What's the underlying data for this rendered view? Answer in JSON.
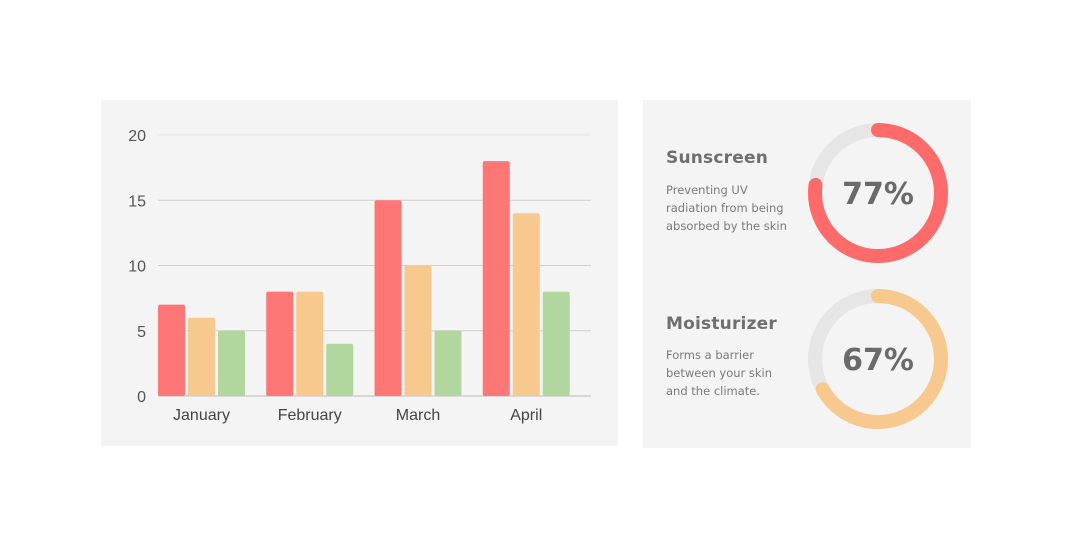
{
  "chart_data": {
    "type": "bar",
    "categories": [
      "January",
      "February",
      "March",
      "April"
    ],
    "series": [
      {
        "values": [
          7,
          8,
          15,
          18
        ],
        "color": "#ff7676"
      },
      {
        "values": [
          6,
          8,
          10,
          14
        ],
        "color": "#f8c98f"
      },
      {
        "values": [
          5,
          4,
          5,
          8
        ],
        "color": "#b1d79e"
      }
    ],
    "ylim": [
      0,
      20
    ],
    "yticks": [
      0,
      5,
      10,
      15,
      20
    ],
    "grid": true,
    "legend": "none"
  },
  "stats": [
    {
      "title": "Sunscreen",
      "description": "Preventing UV radiation from being absorbed by the skin",
      "percent": 77,
      "label": "77%",
      "color": "#ff6b6b"
    },
    {
      "title": "Moisturizer",
      "description": "Forms a barrier between your skin and the climate.",
      "percent": 67,
      "label": "67%",
      "color": "#f8c98f"
    }
  ]
}
